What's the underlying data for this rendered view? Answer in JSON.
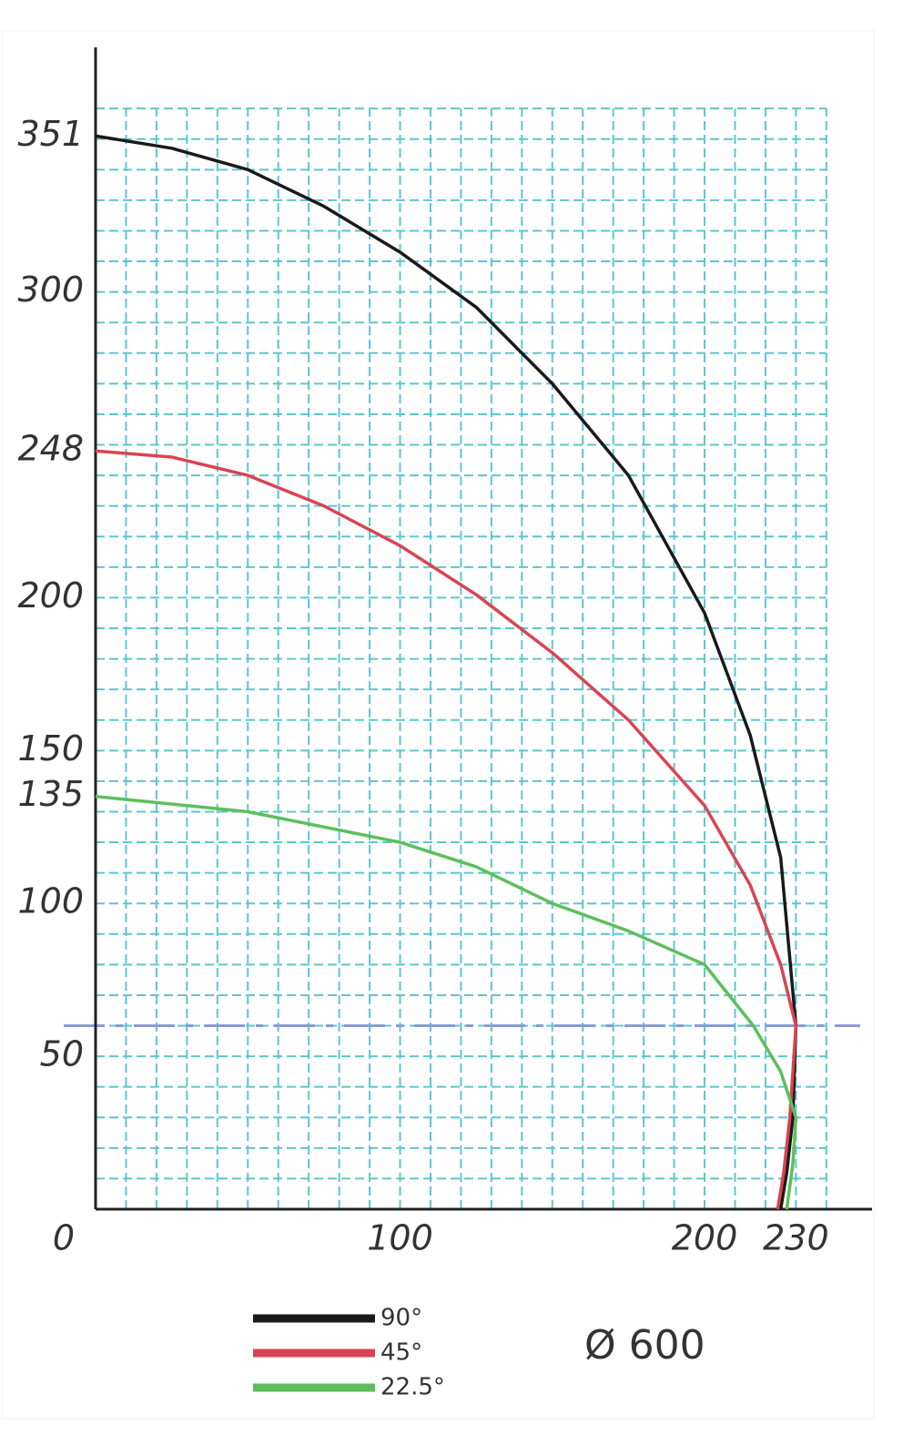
{
  "chart_data": {
    "type": "line",
    "xlim": [
      0,
      255
    ],
    "ylim": [
      0,
      380
    ],
    "xticks": [
      0,
      100,
      200,
      230
    ],
    "yticks": [
      50,
      100,
      135,
      150,
      200,
      248,
      300,
      351
    ],
    "grid": {
      "step": 10,
      "x_max": 240,
      "y_max": 360,
      "color": "#5cc6cf"
    },
    "reference_line": {
      "y": 60,
      "color": "#8a9ad8"
    },
    "annotation": "Ø 600",
    "series": [
      {
        "name": "90°",
        "color": "#1a1a1a",
        "x": [
          0,
          25,
          50,
          75,
          100,
          125,
          150,
          175,
          200,
          215,
          225,
          230,
          229,
          227,
          225
        ],
        "values": [
          351,
          347,
          340,
          328,
          313,
          295,
          270,
          240,
          195,
          155,
          115,
          60,
          30,
          12,
          0
        ]
      },
      {
        "name": "45°",
        "color": "#d94452",
        "x": [
          0,
          25,
          50,
          75,
          100,
          125,
          150,
          175,
          200,
          215,
          225,
          230,
          228,
          226,
          224
        ],
        "values": [
          248,
          246,
          240,
          230,
          217,
          201,
          182,
          160,
          132,
          106,
          80,
          60,
          30,
          12,
          0
        ]
      },
      {
        "name": "22.5°",
        "color": "#5cbf5c",
        "x": [
          0,
          50,
          100,
          125,
          150,
          175,
          200,
          216,
          225,
          230,
          229,
          227
        ],
        "values": [
          135,
          130,
          120,
          112,
          100,
          91,
          80,
          60,
          45,
          30,
          15,
          0
        ]
      }
    ]
  }
}
